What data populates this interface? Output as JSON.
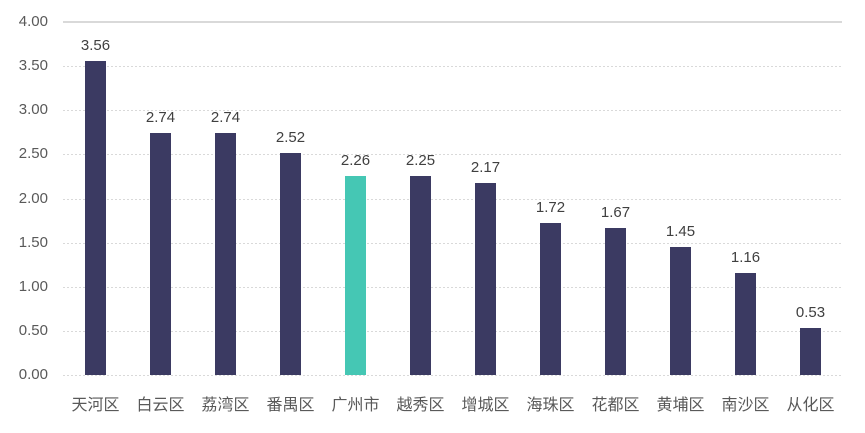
{
  "chart_data": {
    "type": "bar",
    "title": "",
    "xlabel": "",
    "ylabel": "",
    "categories": [
      "天河区",
      "白云区",
      "荔湾区",
      "番禺区",
      "广州市",
      "越秀区",
      "增城区",
      "海珠区",
      "花都区",
      "黄埔区",
      "南沙区",
      "从化区"
    ],
    "values": [
      3.56,
      2.74,
      2.74,
      2.52,
      2.26,
      2.25,
      2.17,
      1.72,
      1.67,
      1.45,
      1.16,
      0.53
    ],
    "value_labels": [
      "3.56",
      "2.74",
      "2.74",
      "2.52",
      "2.26",
      "2.25",
      "2.17",
      "1.72",
      "1.67",
      "1.45",
      "1.16",
      "0.53"
    ],
    "highlight_category": "广州市",
    "highlight_index": 4,
    "ylim": [
      0,
      4
    ],
    "yticks": [
      "4.00",
      "3.50",
      "3.00",
      "2.50",
      "2.00",
      "1.50",
      "1.00",
      "0.50",
      "0.00"
    ],
    "grid": true,
    "legend_position": "none",
    "colors": {
      "bar": "#3B3A62",
      "highlight_bar": "#45C7B4",
      "gridline": "#D9D9D9",
      "axis_label": "#595959",
      "data_label": "#404040",
      "background": "#FFFFFF"
    }
  }
}
